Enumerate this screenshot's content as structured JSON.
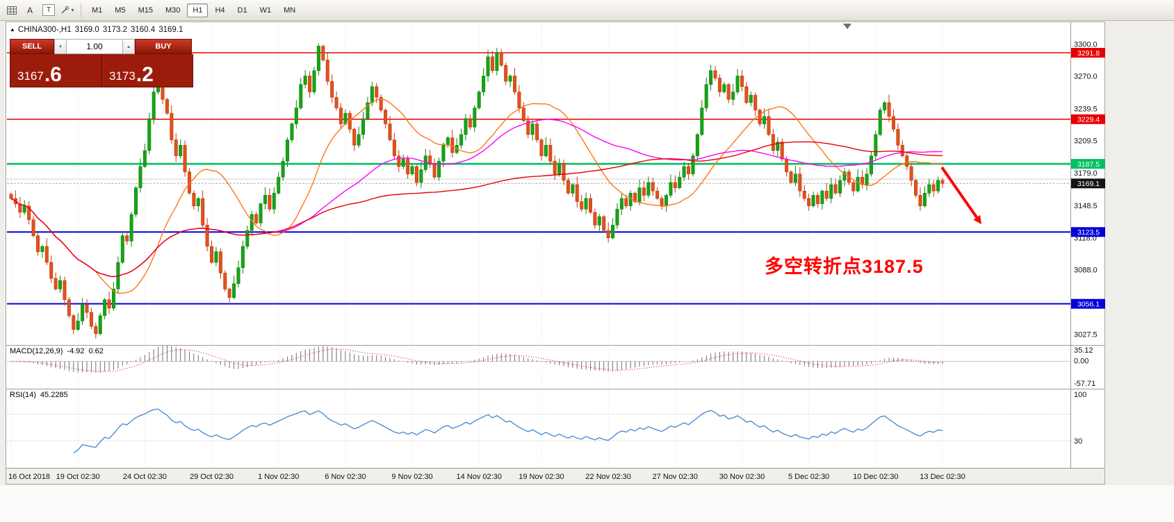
{
  "toolbar": {
    "icon_a_glyph": "A",
    "icon_t_glyph": "T",
    "caret_glyph": "▾",
    "timeframes": [
      "M1",
      "M5",
      "M15",
      "M30",
      "H1",
      "H4",
      "D1",
      "W1",
      "MN"
    ],
    "active_timeframe": "H1"
  },
  "chart": {
    "header": {
      "collapse_glyph": "▲",
      "symbol_timeframe": "CHINA300-,H1",
      "open": "3169.0",
      "high": "3173.2",
      "low": "3160.4",
      "close": "3169.1"
    },
    "trade_panel": {
      "sell_label": "SELL",
      "buy_label": "BUY",
      "volume": "1.00",
      "spinner_down": "▾",
      "spinner_up": "▴",
      "sell_price_main": "3167",
      "sell_price_frac": ".6",
      "buy_price_main": "3173",
      "buy_price_frac": ".2"
    },
    "annotation": {
      "text": "多空转折点3187.5",
      "color": "#FF0000"
    }
  },
  "chart_data": {
    "type": "candlestick",
    "symbol": "CHINA300-",
    "timeframe": "H1",
    "last_bar": {
      "open": 3169.0,
      "high": 3173.2,
      "low": 3160.4,
      "close": 3169.1
    },
    "ylim": [
      3022,
      3312
    ],
    "price_axis_ticks": [
      3300.0,
      3270.0,
      3239.5,
      3209.5,
      3179.0,
      3148.5,
      3118.0,
      3088.0,
      3057.5,
      3027.5
    ],
    "hlines": [
      {
        "price": 3291.8,
        "color": "#E80000",
        "width": 1.6
      },
      {
        "price": 3229.4,
        "color": "#E80000",
        "width": 1.6
      },
      {
        "price": 3187.5,
        "color": "#00C060",
        "width": 2.6
      },
      {
        "price": 3123.5,
        "color": "#0000D8",
        "width": 2.0
      },
      {
        "price": 3056.1,
        "color": "#0000D8",
        "width": 2.0
      }
    ],
    "current_price": 3169.1,
    "ask_price": 3173.2,
    "x_labels": [
      "16 Oct 2018",
      "19 Oct 02:30",
      "24 Oct 02:30",
      "29 Oct 02:30",
      "1 Nov 02:30",
      "6 Nov 02:30",
      "9 Nov 02:30",
      "14 Nov 02:30",
      "19 Nov 02:30",
      "22 Nov 02:30",
      "27 Nov 02:30",
      "30 Nov 02:30",
      "5 Dec 02:30",
      "10 Dec 02:30",
      "13 Dec 02:30"
    ],
    "closes": [
      3155,
      3150,
      3142,
      3148,
      3135,
      3120,
      3105,
      3110,
      3095,
      3080,
      3070,
      3078,
      3060,
      3045,
      3032,
      3040,
      3055,
      3048,
      3035,
      3028,
      3045,
      3060,
      3052,
      3070,
      3095,
      3120,
      3115,
      3140,
      3165,
      3185,
      3200,
      3230,
      3255,
      3262,
      3248,
      3235,
      3210,
      3195,
      3205,
      3180,
      3160,
      3148,
      3155,
      3130,
      3110,
      3095,
      3105,
      3085,
      3070,
      3062,
      3075,
      3090,
      3110,
      3125,
      3140,
      3132,
      3150,
      3158,
      3145,
      3160,
      3175,
      3190,
      3210,
      3225,
      3240,
      3262,
      3270,
      3255,
      3275,
      3298,
      3285,
      3265,
      3250,
      3240,
      3225,
      3235,
      3220,
      3205,
      3215,
      3230,
      3245,
      3260,
      3250,
      3238,
      3225,
      3210,
      3195,
      3185,
      3192,
      3178,
      3185,
      3170,
      3182,
      3195,
      3188,
      3175,
      3190,
      3205,
      3212,
      3198,
      3205,
      3215,
      3230,
      3222,
      3240,
      3255,
      3270,
      3288,
      3275,
      3292,
      3280,
      3265,
      3270,
      3255,
      3240,
      3228,
      3215,
      3225,
      3210,
      3195,
      3205,
      3190,
      3178,
      3188,
      3172,
      3160,
      3168,
      3152,
      3145,
      3155,
      3142,
      3130,
      3138,
      3125,
      3118,
      3130,
      3145,
      3155,
      3148,
      3160,
      3152,
      3165,
      3158,
      3170,
      3162,
      3155,
      3148,
      3158,
      3170,
      3165,
      3175,
      3185,
      3178,
      3195,
      3215,
      3240,
      3262,
      3275,
      3268,
      3255,
      3262,
      3248,
      3255,
      3270,
      3260,
      3245,
      3252,
      3238,
      3225,
      3232,
      3215,
      3200,
      3208,
      3192,
      3180,
      3170,
      3178,
      3162,
      3155,
      3148,
      3158,
      3150,
      3162,
      3155,
      3168,
      3160,
      3172,
      3180,
      3170,
      3162,
      3175,
      3168,
      3178,
      3195,
      3215,
      3238,
      3245,
      3232,
      3220,
      3205,
      3195,
      3185,
      3172,
      3158,
      3148,
      3160,
      3168,
      3162,
      3172,
      3169.1
    ],
    "moving_averages": [
      {
        "period": 20,
        "color": "#FF7519"
      },
      {
        "period": 60,
        "color": "#FF00FF"
      },
      {
        "period": 120,
        "color": "#E60000"
      }
    ],
    "candle_colors": {
      "up_fill": "#17A317",
      "up_stroke": "#0C850C",
      "down_fill": "#E2511B",
      "down_stroke": "#BF390F"
    },
    "indicators": {
      "macd": {
        "label": "MACD(12,26,9)",
        "value_main": -4.92,
        "value_signal": 0.62,
        "axis": [
          35.12,
          0.0,
          -57.71
        ]
      },
      "rsi": {
        "label": "RSI(14)",
        "value": 45.2285,
        "axis": [
          100,
          30
        ],
        "levels": [
          70,
          30
        ]
      }
    },
    "trend_arrow": "down-right"
  }
}
